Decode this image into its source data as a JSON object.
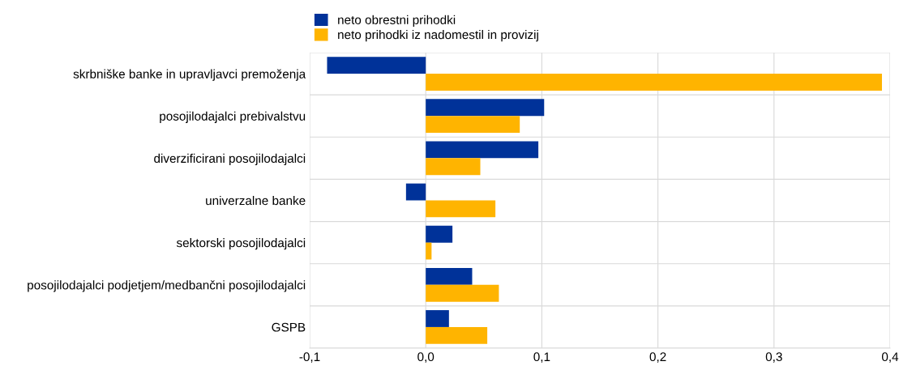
{
  "chart_data": {
    "type": "bar",
    "orientation": "horizontal",
    "categories": [
      "skrbniške banke in upravljavci premoženja",
      "posojilodajalci prebivalstvu",
      "diverzificirani posojilodajalci",
      "univerzalne banke",
      "sektorski posojilodajalci",
      "posojilodajalci podjetjem/medbančni posojilodajalci",
      "GSPB"
    ],
    "series": [
      {
        "name": "neto obrestni prihodki",
        "color": "#003299",
        "values": [
          -0.085,
          0.102,
          0.097,
          -0.017,
          0.023,
          0.04,
          0.02
        ]
      },
      {
        "name": "neto prihodki iz nadomestil in provizij",
        "color": "#ffb400",
        "values": [
          0.393,
          0.081,
          0.047,
          0.06,
          0.005,
          0.063,
          0.053
        ]
      }
    ],
    "xlim": [
      -0.1,
      0.4
    ],
    "xticks": [
      {
        "value": -0.1,
        "label": "-0,1"
      },
      {
        "value": 0.0,
        "label": "0,0"
      },
      {
        "value": 0.1,
        "label": "0,1"
      },
      {
        "value": 0.2,
        "label": "0,2"
      },
      {
        "value": 0.3,
        "label": "0,3"
      },
      {
        "value": 0.4,
        "label": "0,4"
      }
    ],
    "grid": true,
    "legend": "top"
  }
}
